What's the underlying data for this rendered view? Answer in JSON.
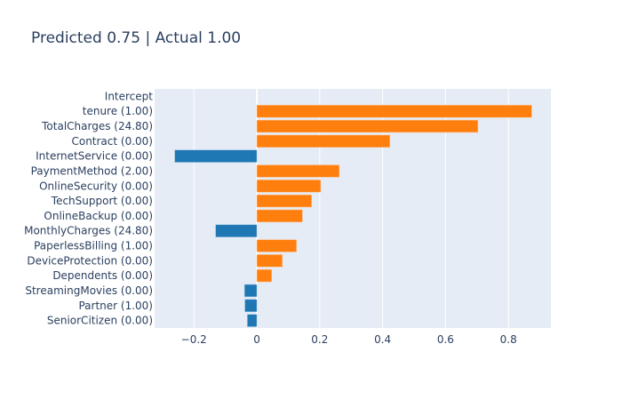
{
  "chart_data": {
    "type": "bar",
    "orientation": "horizontal",
    "title": "Predicted 0.75 | Actual 1.00",
    "xlabel": "",
    "ylabel": "",
    "xlim": [
      -0.325,
      0.935
    ],
    "xticks": [
      -0.2,
      0,
      0.2,
      0.4,
      0.6,
      0.8
    ],
    "xtick_labels": [
      "−0.2",
      "0",
      "0.2",
      "0.4",
      "0.6",
      "0.8"
    ],
    "grid": true,
    "legend": "none",
    "colors": {
      "positive": "#ff7f0e",
      "negative": "#1f77b4",
      "plot_bg": "#e5ecf6",
      "text": "#2a3f5f"
    },
    "categories": [
      "Intercept",
      "tenure (1.00)",
      "TotalCharges (24.80)",
      "Contract (0.00)",
      "InternetService (0.00)",
      "PaymentMethod (2.00)",
      "OnlineSecurity (0.00)",
      "TechSupport (0.00)",
      "OnlineBackup (0.00)",
      "MonthlyCharges (24.80)",
      "PaperlessBilling (1.00)",
      "DeviceProtection (0.00)",
      "Dependents (0.00)",
      "StreamingMovies (0.00)",
      "Partner (1.00)",
      "SeniorCitizen (0.00)"
    ],
    "values": [
      0,
      0.874,
      0.703,
      0.423,
      -0.261,
      0.262,
      0.203,
      0.174,
      0.145,
      -0.131,
      0.126,
      0.081,
      0.047,
      -0.039,
      -0.038,
      -0.03
    ]
  }
}
